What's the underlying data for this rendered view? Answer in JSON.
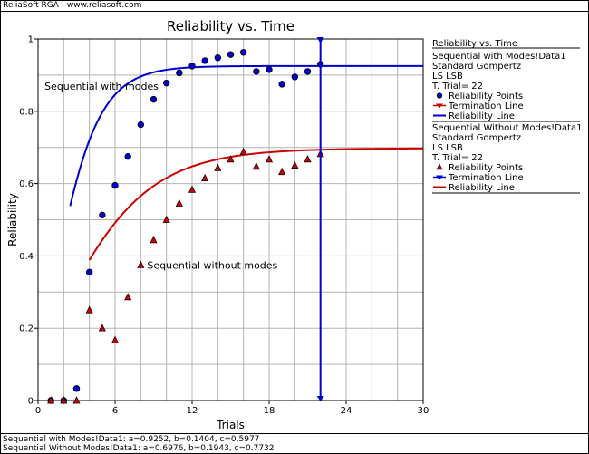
{
  "header": {
    "source_label": "ReliaSoft RGA - www.reliasoft.com"
  },
  "colors": {
    "series1": "#0000cc",
    "series2": "#cc0000",
    "grid": "#b4b4b4"
  },
  "chart_data": {
    "type": "scatter",
    "title": "Reliability vs. Time",
    "xlabel": "Trials",
    "ylabel": "Reliability",
    "xlim": [
      0,
      30
    ],
    "ylim": [
      0,
      1
    ],
    "xticks": [
      {
        "v": 0,
        "label": "0"
      },
      {
        "v": 6,
        "label": "6"
      },
      {
        "v": 12,
        "label": "12"
      },
      {
        "v": 18,
        "label": "18"
      },
      {
        "v": 24,
        "label": "24"
      },
      {
        "v": 30,
        "label": "30"
      }
    ],
    "xgrid_step": 2,
    "yticks": [
      {
        "v": 0,
        "label": "0"
      },
      {
        "v": 0.2,
        "label": "0.2"
      },
      {
        "v": 0.4,
        "label": "0.4"
      },
      {
        "v": 0.6,
        "label": "0.6"
      },
      {
        "v": 0.8,
        "label": "0.8"
      },
      {
        "v": 1,
        "label": "1"
      }
    ],
    "ygrid_step": 0.1,
    "grid": true,
    "termination_x": 22,
    "annotations": [
      {
        "text": "Sequential with modes",
        "x": 0.5,
        "y": 0.86
      },
      {
        "text": "Sequential without modes",
        "x": 8.5,
        "y": 0.365
      }
    ],
    "series": [
      {
        "name": "Sequential with Modes!Data1",
        "color": "#0000cc",
        "marker": "circle",
        "points": [
          [
            1,
            0
          ],
          [
            2,
            0
          ],
          [
            3,
            0.033
          ],
          [
            4,
            0.355
          ],
          [
            5,
            0.513
          ],
          [
            6,
            0.595
          ],
          [
            7,
            0.675
          ],
          [
            8,
            0.763
          ],
          [
            9,
            0.833
          ],
          [
            10,
            0.878
          ],
          [
            11,
            0.906
          ],
          [
            12,
            0.925
          ],
          [
            13,
            0.94
          ],
          [
            14,
            0.948
          ],
          [
            15,
            0.957
          ],
          [
            16,
            0.963
          ],
          [
            17,
            0.91
          ],
          [
            18,
            0.915
          ],
          [
            19,
            0.875
          ],
          [
            20,
            0.895
          ],
          [
            21,
            0.91
          ],
          [
            22,
            0.93
          ]
        ],
        "model": {
          "a": 0.9252,
          "b": 0.1404,
          "c": 0.5977
        },
        "line_from": 2.5
      },
      {
        "name": "Sequential Without Modes!Data1",
        "color": "#cc0000",
        "marker": "triangle",
        "points": [
          [
            1,
            0
          ],
          [
            2,
            0
          ],
          [
            3,
            0
          ],
          [
            4,
            0.25
          ],
          [
            5,
            0.2
          ],
          [
            6,
            0.167
          ],
          [
            7,
            0.286
          ],
          [
            8,
            0.375
          ],
          [
            9,
            0.444
          ],
          [
            10,
            0.5
          ],
          [
            11,
            0.545
          ],
          [
            12,
            0.583
          ],
          [
            13,
            0.615
          ],
          [
            14,
            0.643
          ],
          [
            15,
            0.667
          ],
          [
            16,
            0.688
          ],
          [
            17,
            0.647
          ],
          [
            18,
            0.667
          ],
          [
            19,
            0.632
          ],
          [
            20,
            0.65
          ],
          [
            21,
            0.667
          ],
          [
            22,
            0.682
          ]
        ],
        "model": {
          "a": 0.6976,
          "b": 0.1943,
          "c": 0.7732
        },
        "line_from": 4
      }
    ]
  },
  "legend": {
    "title": "Reliability vs. Time",
    "groups": [
      {
        "series_name": "Sequential with Modes!Data1",
        "model": "Standard Gompertz",
        "method": "LS LSB",
        "trial": "T. Trial= 22",
        "points_label": "Reliability Points",
        "termination_label": "Termination Line",
        "line_label": "Reliability Line",
        "color": "#0000cc",
        "marker": "circle",
        "termination_color": "#cc0000"
      },
      {
        "series_name": "Sequential Without Modes!Data1",
        "model": "Standard Gompertz",
        "method": "LS LSB",
        "trial": "T. Trial= 22",
        "points_label": "Reliability Points",
        "termination_label": "Termination Line",
        "line_label": "Reliability Line",
        "color": "#cc0000",
        "marker": "triangle",
        "termination_color": "#0000cc"
      }
    ]
  },
  "footer": {
    "lines": [
      "Sequential with Modes!Data1: a=0.9252, b=0.1404, c=0.5977",
      "Sequential Without Modes!Data1: a=0.6976, b=0.1943, c=0.7732"
    ]
  }
}
